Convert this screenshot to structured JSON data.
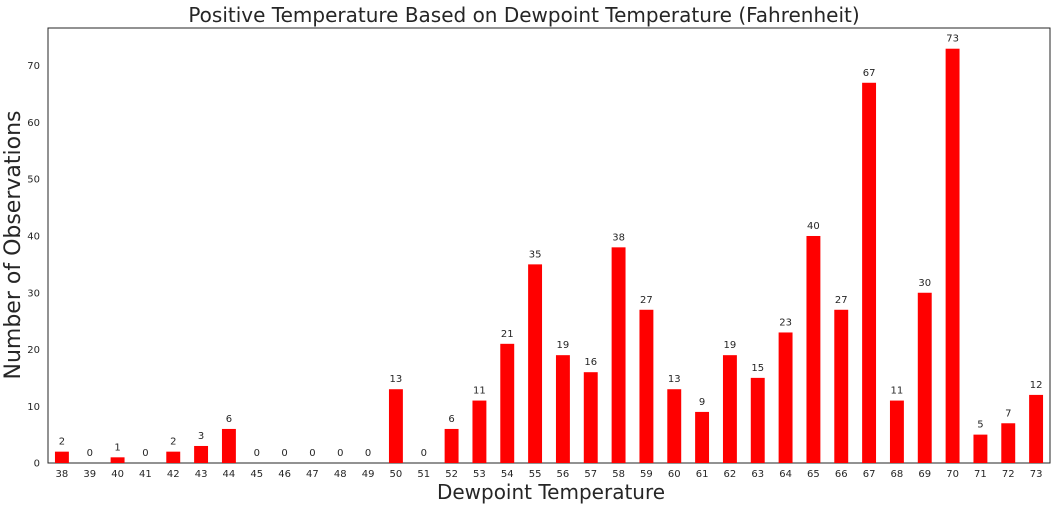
{
  "chart_data": {
    "type": "bar",
    "title": "Positive Temperature Based on Dewpoint Temperature (Fahrenheit)",
    "xlabel": "Dewpoint Temperature",
    "ylabel": "Number of Observations",
    "categories": [
      "38",
      "39",
      "40",
      "41",
      "42",
      "43",
      "44",
      "45",
      "46",
      "47",
      "48",
      "49",
      "50",
      "51",
      "52",
      "53",
      "54",
      "55",
      "56",
      "57",
      "58",
      "59",
      "60",
      "61",
      "62",
      "63",
      "64",
      "65",
      "66",
      "67",
      "68",
      "69",
      "70",
      "71",
      "72",
      "73"
    ],
    "values": [
      2,
      0,
      1,
      0,
      2,
      3,
      6,
      0,
      0,
      0,
      0,
      0,
      13,
      0,
      6,
      11,
      21,
      35,
      19,
      16,
      38,
      27,
      13,
      9,
      19,
      15,
      23,
      40,
      27,
      67,
      11,
      30,
      73,
      5,
      7,
      12
    ],
    "yticks": [
      0,
      10,
      20,
      30,
      40,
      50,
      60,
      70
    ],
    "ylim": [
      0,
      76.65
    ],
    "bar_color": "#ff0000",
    "grid": false,
    "data_labels": true
  }
}
